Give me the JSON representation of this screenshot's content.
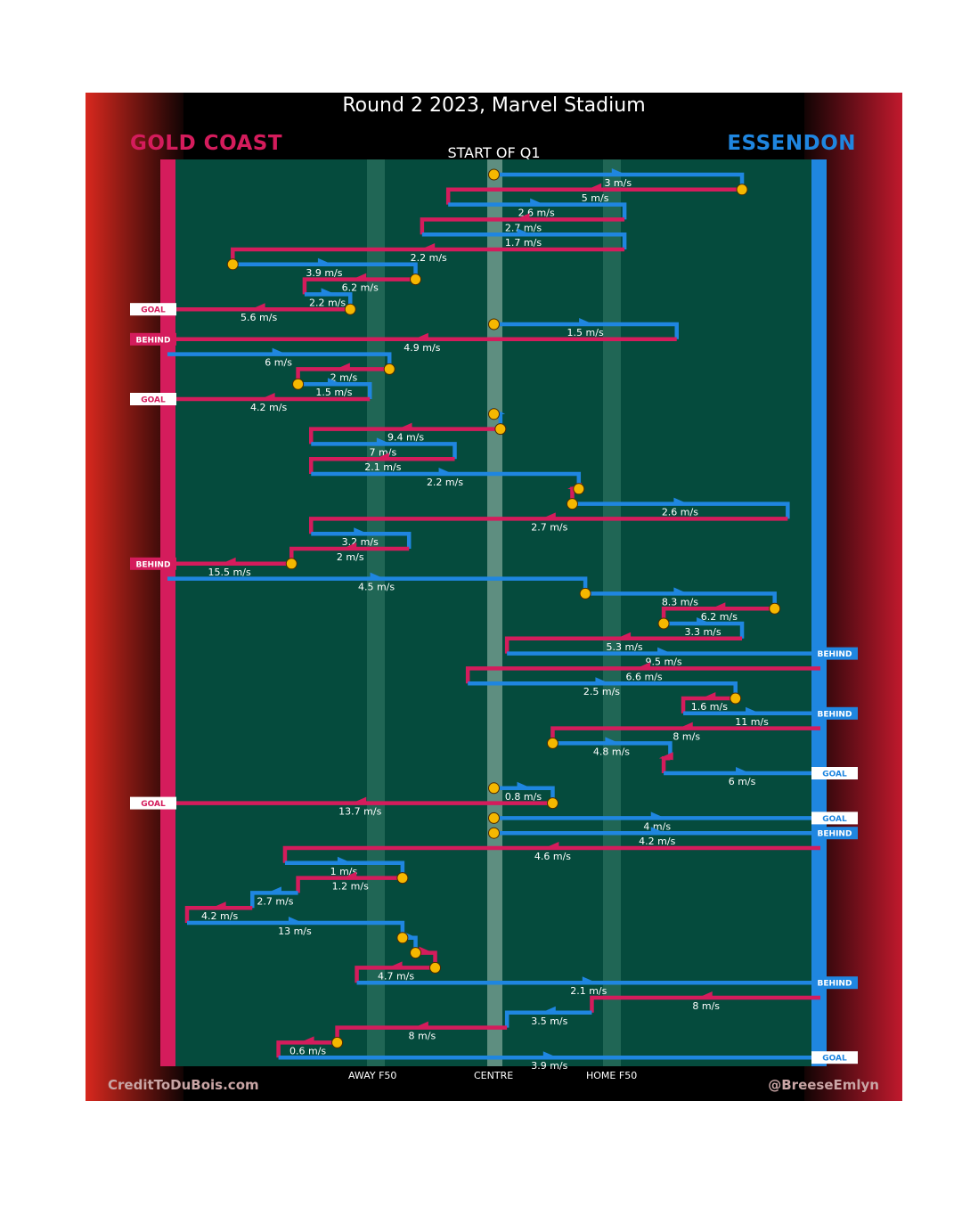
{
  "title": "Round 2 2023, Marvel Stadium",
  "quarter": "START OF Q1",
  "teams": {
    "home": {
      "name": "GOLD COAST",
      "color": "#d41c5c"
    },
    "away": {
      "name": "ESSENDON",
      "color": "#1f86e0"
    }
  },
  "zones": {
    "away_f50": "AWAY F50",
    "centre": "CENTRE",
    "home_f50": "HOME F50"
  },
  "credits": {
    "left": "CreditToDuBois.com",
    "right": "@BreeseEmlyn"
  },
  "colors": {
    "field": "#054b3d",
    "home": "#d41c5c",
    "away": "#1f86e0",
    "marker": "#f5b800"
  },
  "chart_data": {
    "type": "flow",
    "chains": [
      {
        "team": "away",
        "speed": "3 m/s",
        "pts": [
          [
            0.5,
            0
          ],
          [
            0.88,
            0
          ],
          [
            0.88,
            1
          ]
        ],
        "start": true
      },
      {
        "team": "home",
        "speed": "5 m/s",
        "pts": [
          [
            0.88,
            1
          ],
          [
            0.43,
            1
          ],
          [
            0.43,
            2
          ]
        ],
        "start": true
      },
      {
        "team": "away",
        "speed": "2.6 m/s",
        "pts": [
          [
            0.43,
            2
          ],
          [
            0.7,
            2
          ],
          [
            0.7,
            3
          ]
        ]
      },
      {
        "team": "home",
        "speed": "2.7 m/s",
        "pts": [
          [
            0.7,
            3
          ],
          [
            0.39,
            3
          ],
          [
            0.39,
            4
          ]
        ]
      },
      {
        "team": "away",
        "speed": "1.7 m/s",
        "pts": [
          [
            0.39,
            4
          ],
          [
            0.7,
            4
          ],
          [
            0.7,
            5
          ]
        ]
      },
      {
        "team": "home",
        "speed": "2.2 m/s",
        "pts": [
          [
            0.7,
            5
          ],
          [
            0.1,
            5
          ],
          [
            0.1,
            6
          ]
        ]
      },
      {
        "team": "away",
        "speed": "3.9 m/s",
        "pts": [
          [
            0.1,
            6
          ],
          [
            0.38,
            6
          ],
          [
            0.38,
            7
          ]
        ],
        "start": true
      },
      {
        "team": "home",
        "speed": "6.2 m/s",
        "pts": [
          [
            0.38,
            7
          ],
          [
            0.21,
            7
          ],
          [
            0.21,
            8
          ]
        ],
        "start": true
      },
      {
        "team": "away",
        "speed": "2.2 m/s",
        "pts": [
          [
            0.21,
            8
          ],
          [
            0.28,
            8
          ],
          [
            0.28,
            9
          ]
        ]
      },
      {
        "team": "home",
        "speed": "5.6 m/s",
        "pts": [
          [
            0.28,
            9
          ],
          [
            0,
            9
          ]
        ],
        "start": true,
        "end": "GOAL"
      },
      {
        "team": "away",
        "speed": "1.5 m/s",
        "pts": [
          [
            0.5,
            10
          ],
          [
            0.78,
            10
          ],
          [
            0.78,
            11
          ]
        ],
        "start": true
      },
      {
        "team": "home",
        "speed": "4.9 m/s",
        "pts": [
          [
            0.78,
            11
          ],
          [
            0,
            11
          ]
        ],
        "end": "BEHIND"
      },
      {
        "team": "away",
        "speed": "6 m/s",
        "pts": [
          [
            0,
            12
          ],
          [
            0.34,
            12
          ],
          [
            0.34,
            13
          ]
        ]
      },
      {
        "team": "home",
        "speed": "2 m/s",
        "pts": [
          [
            0.34,
            13
          ],
          [
            0.2,
            13
          ],
          [
            0.2,
            14
          ]
        ],
        "start": true
      },
      {
        "team": "away",
        "speed": "1.5 m/s",
        "pts": [
          [
            0.2,
            14
          ],
          [
            0.31,
            14
          ],
          [
            0.31,
            15
          ]
        ],
        "start": true
      },
      {
        "team": "home",
        "speed": "4.2 m/s",
        "pts": [
          [
            0.31,
            15
          ],
          [
            0,
            15
          ]
        ],
        "end": "GOAL"
      },
      {
        "team": "away",
        "speed": "",
        "pts": [
          [
            0.5,
            16
          ],
          [
            0.51,
            16
          ],
          [
            0.51,
            17
          ]
        ],
        "start": true
      },
      {
        "team": "home",
        "speed": "9.4 m/s",
        "pts": [
          [
            0.51,
            17
          ],
          [
            0.22,
            17
          ],
          [
            0.22,
            18
          ]
        ],
        "start": true
      },
      {
        "team": "away",
        "speed": "7 m/s",
        "pts": [
          [
            0.22,
            18
          ],
          [
            0.44,
            18
          ],
          [
            0.44,
            19
          ]
        ]
      },
      {
        "team": "home",
        "speed": "2.1 m/s",
        "pts": [
          [
            0.44,
            19
          ],
          [
            0.22,
            19
          ],
          [
            0.22,
            20
          ]
        ]
      },
      {
        "team": "away",
        "speed": "2.2 m/s",
        "pts": [
          [
            0.22,
            20
          ],
          [
            0.63,
            20
          ],
          [
            0.63,
            21
          ]
        ]
      },
      {
        "team": "home",
        "speed": "",
        "pts": [
          [
            0.63,
            21
          ],
          [
            0.62,
            21
          ],
          [
            0.62,
            22
          ]
        ],
        "start": true
      },
      {
        "team": "away",
        "speed": "2.6 m/s",
        "pts": [
          [
            0.62,
            22
          ],
          [
            0.95,
            22
          ],
          [
            0.95,
            23
          ]
        ],
        "start": true
      },
      {
        "team": "home",
        "speed": "2.7 m/s",
        "pts": [
          [
            0.95,
            23
          ],
          [
            0.22,
            23
          ],
          [
            0.22,
            24
          ]
        ]
      },
      {
        "team": "away",
        "speed": "3.2 m/s",
        "pts": [
          [
            0.22,
            24
          ],
          [
            0.37,
            24
          ],
          [
            0.37,
            25
          ]
        ]
      },
      {
        "team": "home",
        "speed": "2 m/s",
        "pts": [
          [
            0.37,
            25
          ],
          [
            0.19,
            25
          ],
          [
            0.19,
            26
          ]
        ]
      },
      {
        "team": "home",
        "speed": "15.5 m/s",
        "pts": [
          [
            0.19,
            26
          ],
          [
            0,
            26
          ]
        ],
        "start": true,
        "end": "BEHIND"
      },
      {
        "team": "away",
        "speed": "4.5 m/s",
        "pts": [
          [
            0,
            27
          ],
          [
            0.64,
            27
          ],
          [
            0.64,
            28
          ]
        ]
      },
      {
        "team": "away",
        "speed": "8.3 m/s",
        "pts": [
          [
            0.64,
            28
          ],
          [
            0.93,
            28
          ],
          [
            0.93,
            29
          ]
        ],
        "start": true
      },
      {
        "team": "home",
        "speed": "6.2 m/s",
        "pts": [
          [
            0.93,
            29
          ],
          [
            0.76,
            29
          ],
          [
            0.76,
            30
          ]
        ],
        "start": true
      },
      {
        "team": "away",
        "speed": "3.3 m/s",
        "pts": [
          [
            0.76,
            30
          ],
          [
            0.88,
            30
          ],
          [
            0.88,
            31
          ]
        ],
        "start": true
      },
      {
        "team": "home",
        "speed": "5.3 m/s",
        "pts": [
          [
            0.88,
            31
          ],
          [
            0.52,
            31
          ],
          [
            0.52,
            32
          ]
        ]
      },
      {
        "team": "away",
        "speed": "9.5 m/s",
        "pts": [
          [
            0.52,
            32
          ],
          [
            1,
            32
          ]
        ],
        "end": "BEHIND"
      },
      {
        "team": "home",
        "speed": "6.6 m/s",
        "pts": [
          [
            1,
            33
          ],
          [
            0.46,
            33
          ],
          [
            0.46,
            34
          ]
        ]
      },
      {
        "team": "away",
        "speed": "2.5 m/s",
        "pts": [
          [
            0.46,
            34
          ],
          [
            0.87,
            34
          ],
          [
            0.87,
            35
          ]
        ]
      },
      {
        "team": "home",
        "speed": "1.6 m/s",
        "pts": [
          [
            0.87,
            35
          ],
          [
            0.79,
            35
          ],
          [
            0.79,
            36
          ]
        ],
        "start": true
      },
      {
        "team": "away",
        "speed": "11 m/s",
        "pts": [
          [
            0.79,
            36
          ],
          [
            1,
            36
          ]
        ],
        "end": "BEHIND"
      },
      {
        "team": "home",
        "speed": "8 m/s",
        "pts": [
          [
            1,
            37
          ],
          [
            0.59,
            37
          ],
          [
            0.59,
            38
          ]
        ]
      },
      {
        "team": "away",
        "speed": "4.8 m/s",
        "pts": [
          [
            0.59,
            38
          ],
          [
            0.77,
            38
          ],
          [
            0.77,
            39
          ]
        ],
        "start": true
      },
      {
        "team": "home",
        "speed": "",
        "pts": [
          [
            0.77,
            39
          ],
          [
            0.76,
            39
          ],
          [
            0.76,
            40
          ]
        ]
      },
      {
        "team": "away",
        "speed": "6 m/s",
        "pts": [
          [
            0.76,
            40
          ],
          [
            1,
            40
          ]
        ],
        "end": "GOAL"
      },
      {
        "team": "away",
        "speed": "0.8 m/s",
        "pts": [
          [
            0.5,
            41
          ],
          [
            0.59,
            41
          ],
          [
            0.59,
            42
          ]
        ],
        "start": true
      },
      {
        "team": "home",
        "speed": "13.7 m/s",
        "pts": [
          [
            0.59,
            42
          ],
          [
            0,
            42
          ]
        ],
        "start": true,
        "end": "GOAL"
      },
      {
        "team": "away",
        "speed": "4 m/s",
        "pts": [
          [
            0.5,
            43
          ],
          [
            1,
            43
          ]
        ],
        "start": true,
        "end": "GOAL"
      },
      {
        "team": "away",
        "speed": "4.2 m/s",
        "pts": [
          [
            0.5,
            44
          ],
          [
            1,
            44
          ]
        ],
        "start": true,
        "end": "BEHIND"
      },
      {
        "team": "home",
        "speed": "4.6 m/s",
        "pts": [
          [
            1,
            45
          ],
          [
            0.18,
            45
          ],
          [
            0.18,
            46
          ]
        ]
      },
      {
        "team": "away",
        "speed": "1 m/s",
        "pts": [
          [
            0.18,
            46
          ],
          [
            0.36,
            46
          ],
          [
            0.36,
            47
          ]
        ]
      },
      {
        "team": "home",
        "speed": "1.2 m/s",
        "pts": [
          [
            0.36,
            47
          ],
          [
            0.2,
            47
          ],
          [
            0.2,
            48
          ]
        ],
        "start": true
      },
      {
        "team": "away",
        "speed": "2.7 m/s",
        "pts": [
          [
            0.2,
            48
          ],
          [
            0.13,
            48
          ],
          [
            0.13,
            49
          ]
        ]
      },
      {
        "team": "home",
        "speed": "4.2 m/s",
        "pts": [
          [
            0.13,
            49
          ],
          [
            0.03,
            49
          ],
          [
            0.03,
            50
          ]
        ]
      },
      {
        "team": "away",
        "speed": "13 m/s",
        "pts": [
          [
            0.03,
            50
          ],
          [
            0.36,
            50
          ],
          [
            0.36,
            51
          ]
        ]
      },
      {
        "team": "away",
        "speed": "",
        "pts": [
          [
            0.36,
            51
          ],
          [
            0.38,
            51
          ],
          [
            0.38,
            52
          ]
        ],
        "start": true
      },
      {
        "team": "home",
        "speed": "",
        "pts": [
          [
            0.38,
            52
          ],
          [
            0.41,
            52
          ],
          [
            0.41,
            53
          ]
        ],
        "start": true
      },
      {
        "team": "home",
        "speed": "4.7 m/s",
        "pts": [
          [
            0.41,
            53
          ],
          [
            0.29,
            53
          ],
          [
            0.29,
            54
          ]
        ],
        "start": true
      },
      {
        "team": "away",
        "speed": "2.1 m/s",
        "pts": [
          [
            0.29,
            54
          ],
          [
            1,
            54
          ]
        ],
        "end": "BEHIND"
      },
      {
        "team": "home",
        "speed": "8 m/s",
        "pts": [
          [
            1,
            55
          ],
          [
            0.65,
            55
          ],
          [
            0.65,
            56
          ]
        ]
      },
      {
        "team": "away",
        "speed": "3.5 m/s",
        "pts": [
          [
            0.65,
            56
          ],
          [
            0.52,
            56
          ],
          [
            0.52,
            57
          ]
        ]
      },
      {
        "team": "home",
        "speed": "8 m/s",
        "pts": [
          [
            0.52,
            57
          ],
          [
            0.26,
            57
          ],
          [
            0.26,
            58
          ]
        ]
      },
      {
        "team": "home",
        "speed": "0.6 m/s",
        "pts": [
          [
            0.26,
            58
          ],
          [
            0.17,
            58
          ],
          [
            0.17,
            59
          ]
        ],
        "start": true
      },
      {
        "team": "away",
        "speed": "3.9 m/s",
        "pts": [
          [
            0.17,
            59
          ],
          [
            1,
            59
          ]
        ],
        "end": "GOAL"
      }
    ]
  }
}
